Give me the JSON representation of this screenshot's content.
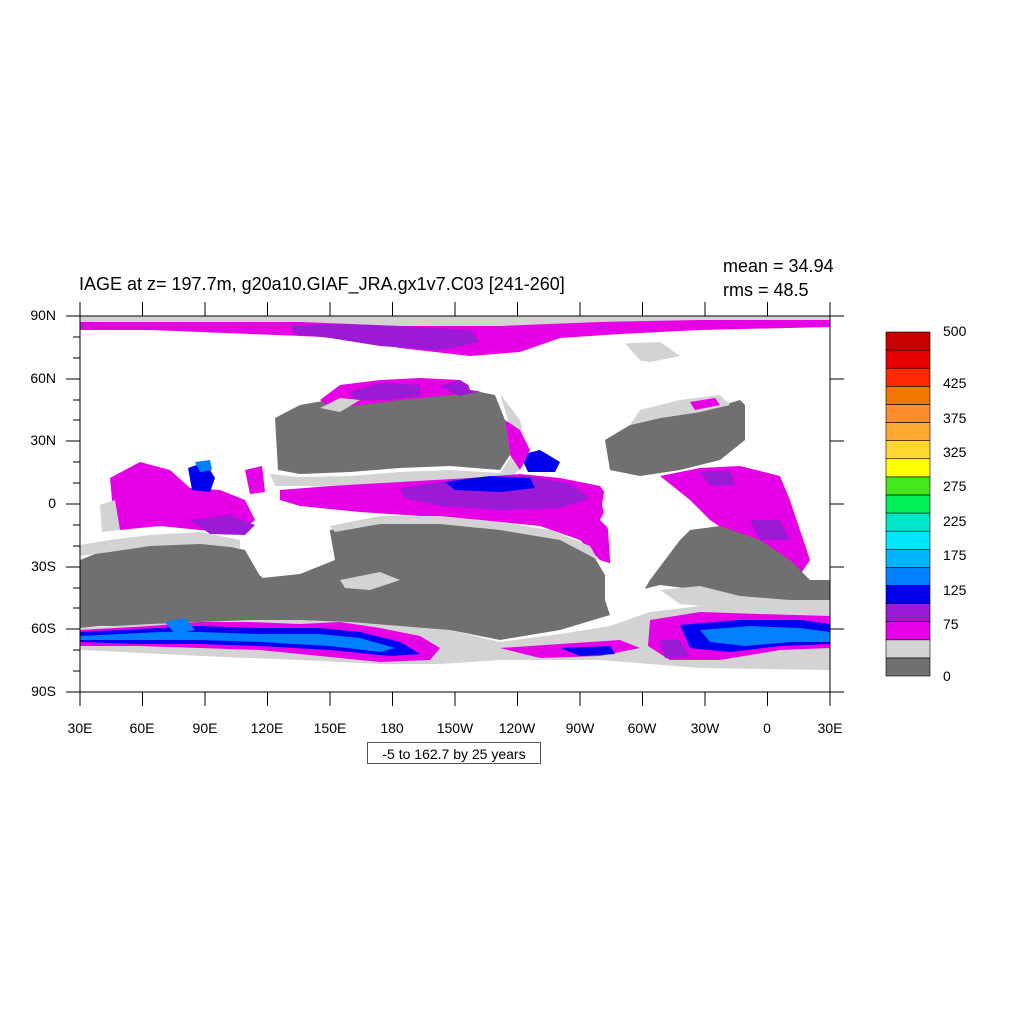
{
  "plot": {
    "title": "IAGE at z= 197.7m, g20a10.GIAF_JRA.gx1v7.C03 [241-260]",
    "mean_label": "mean = 34.94",
    "rms_label": "rms = 48.5",
    "contour_note": "-5 to 162.7 by 25 years"
  },
  "axes": {
    "y_labels": [
      "90N",
      "60N",
      "30N",
      "0",
      "30S",
      "60S",
      "90S"
    ],
    "x_labels": [
      "30E",
      "60E",
      "90E",
      "120E",
      "150E",
      "180",
      "150W",
      "120W",
      "90W",
      "60W",
      "30W",
      "0",
      "30E"
    ]
  },
  "colorbar": {
    "colors": [
      "#707070",
      "#d3d3d3",
      "#e600e6",
      "#9a1ad6",
      "#0000f0",
      "#0080ff",
      "#00b4ff",
      "#00e6ff",
      "#00e6c8",
      "#00f05a",
      "#46e61e",
      "#ffff00",
      "#ffd732",
      "#ffaa32",
      "#ff8c32",
      "#f07800",
      "#ff2800",
      "#e60000",
      "#c80000"
    ],
    "labels": [
      "500",
      "425",
      "375",
      "325",
      "275",
      "225",
      "175",
      "125",
      "75",
      "0"
    ]
  },
  "palette": {
    "land": "#ffffff",
    "young": "#707070",
    "light": "#d3d3d3",
    "magenta": "#e600e6",
    "purple": "#9a1ad6",
    "blue": "#0000f0",
    "azure": "#0080ff"
  }
}
